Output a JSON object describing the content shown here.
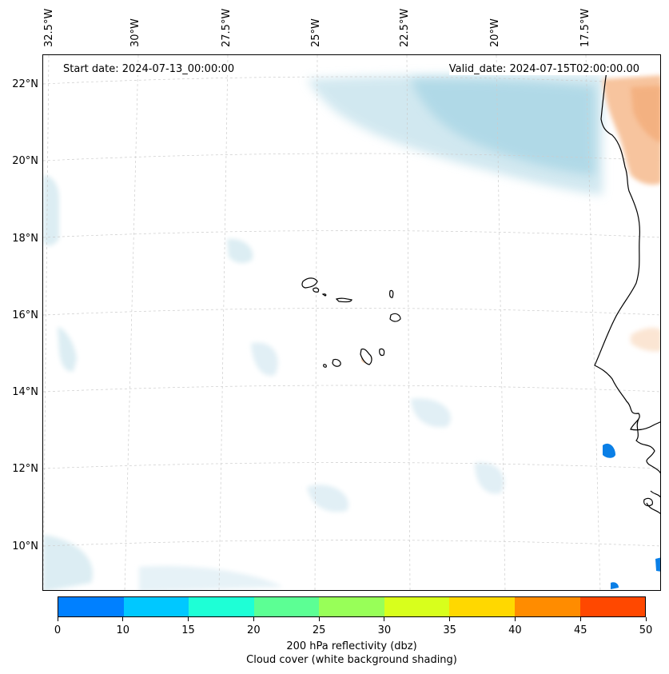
{
  "map": {
    "lon_labels": [
      "32.5°W",
      "30°W",
      "27.5°W",
      "25°W",
      "22.5°W",
      "20°W",
      "17.5°W"
    ],
    "lat_labels": [
      "22°N",
      "20°N",
      "18°N",
      "16°N",
      "14°N",
      "12°N",
      "10°N"
    ],
    "start_date": "Start date: 2024-07-13_00:00:00",
    "valid_date": "Valid_date: 2024-07-15T02:00:00.00"
  },
  "colorbar": {
    "ticks": [
      "0",
      "10",
      "15",
      "20",
      "25",
      "30",
      "35",
      "40",
      "45",
      "50"
    ],
    "colors": [
      "#0080ff",
      "#00c8ff",
      "#1effd6",
      "#5cff94",
      "#98ff58",
      "#d8ff1c",
      "#ffd800",
      "#ff8c00",
      "#ff4800"
    ],
    "label_line1": "200 hPa reflectivity (dbz)",
    "label_line2": "Cloud cover (white background shading)"
  },
  "colors": {
    "cloud_light": "#dcedf3",
    "cloud_mid": "#b9dde8",
    "cloud_dark": "#a3d1e1",
    "reflect_orange": "#f7c49e",
    "reflect_orange_dark": "#f2a56e",
    "reflect_blue": "#0a7fe6",
    "land_outline": "#000000",
    "grid": "#cccccc"
  }
}
